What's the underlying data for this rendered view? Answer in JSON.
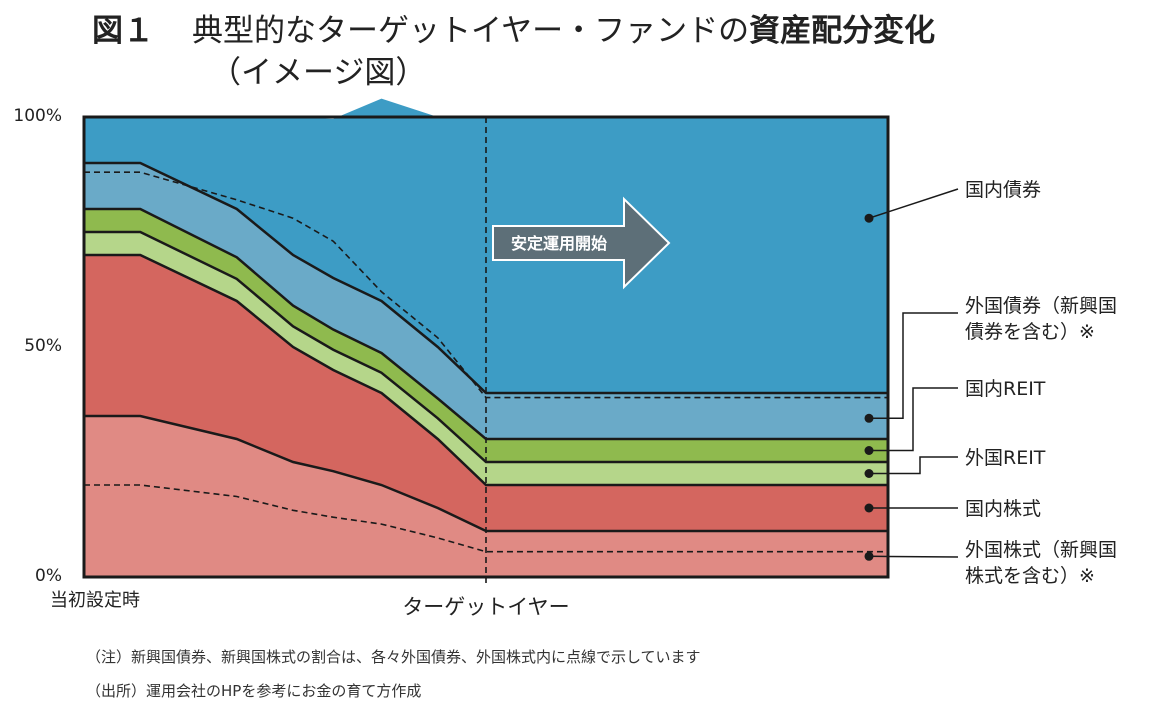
{
  "title": {
    "fig_no": "図１",
    "part1": "典型的なターゲットイヤー・ファンドの",
    "part2": "資産配分変化",
    "line2": "（イメージ図）"
  },
  "chart_data": {
    "type": "area",
    "stacked": true,
    "y_ticks": [
      "100%",
      "50%",
      "0%"
    ],
    "ylim": [
      0,
      100
    ],
    "x_start_label": "当初設定時",
    "x_target_label": "ターゲットイヤー",
    "x": [
      0,
      7,
      19,
      26,
      31,
      37,
      44,
      50,
      100
    ],
    "series": [
      {
        "name": "外国株式（新興国株式を含む）",
        "values": [
          35,
          35,
          30,
          25,
          23,
          20,
          15,
          10,
          10
        ],
        "color": "#e08a84"
      },
      {
        "name": "国内株式",
        "values": [
          35,
          35,
          30,
          25,
          22,
          20,
          15,
          10,
          10
        ],
        "color": "#d4665f"
      },
      {
        "name": "外国REIT",
        "values": [
          5,
          5,
          4.8,
          4.5,
          4.4,
          4.4,
          4.5,
          5,
          5
        ],
        "color": "#b5d68a"
      },
      {
        "name": "国内REIT",
        "values": [
          5,
          5,
          4.7,
          4.5,
          4.4,
          4.3,
          4.3,
          5,
          5
        ],
        "color": "#8fba4e"
      },
      {
        "name": "外国債券（新興国債券を含む）",
        "values": [
          10,
          10,
          10.5,
          11,
          11.2,
          11.3,
          11.2,
          10,
          10
        ],
        "color": "#6aaac8"
      },
      {
        "name": "国内債券",
        "values": [
          10,
          10,
          20,
          30,
          34.6,
          44,
          50,
          60,
          60
        ],
        "color": "#3d9cc5"
      }
    ],
    "dashed_subsets": [
      {
        "of": "外国株式（新興国株式を含む）",
        "cumulative_top": [
          20,
          20,
          17.5,
          14.5,
          13,
          11.5,
          8.5,
          5.5,
          5.5
        ]
      },
      {
        "of": "外国債券（新興国債券を含む）",
        "cumulative_top": [
          88,
          88,
          82,
          78,
          73,
          62,
          52,
          39,
          39
        ]
      }
    ],
    "annotation": "安定運用開始",
    "target_year_x": 50
  },
  "notes": [
    "（注）新興国債券、新興国株式の割合は、各々外国債券、外国株式内に点線で示しています",
    "（出所）運用会社のHPを参考にお金の育て方作成"
  ]
}
